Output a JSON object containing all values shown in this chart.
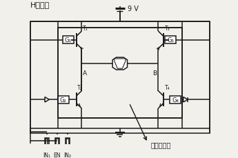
{
  "title": "H桥电路",
  "power_label": "9 V",
  "node_A": "A",
  "node_B": "B",
  "T1": "T₁",
  "T2": "T₂",
  "T3": "T₃",
  "T4": "T₄",
  "G1": "G₁",
  "G2": "G₂",
  "G3": "G₃",
  "G4": "G₄",
  "IN1": "IN₁",
  "EN": "EN",
  "IN2": "IN₂",
  "sensor_label": "发射传感器",
  "bg_color": "#f2f0eb",
  "line_color": "#1a1a1a",
  "fig_width": 3.45,
  "fig_height": 2.3,
  "dpi": 100
}
